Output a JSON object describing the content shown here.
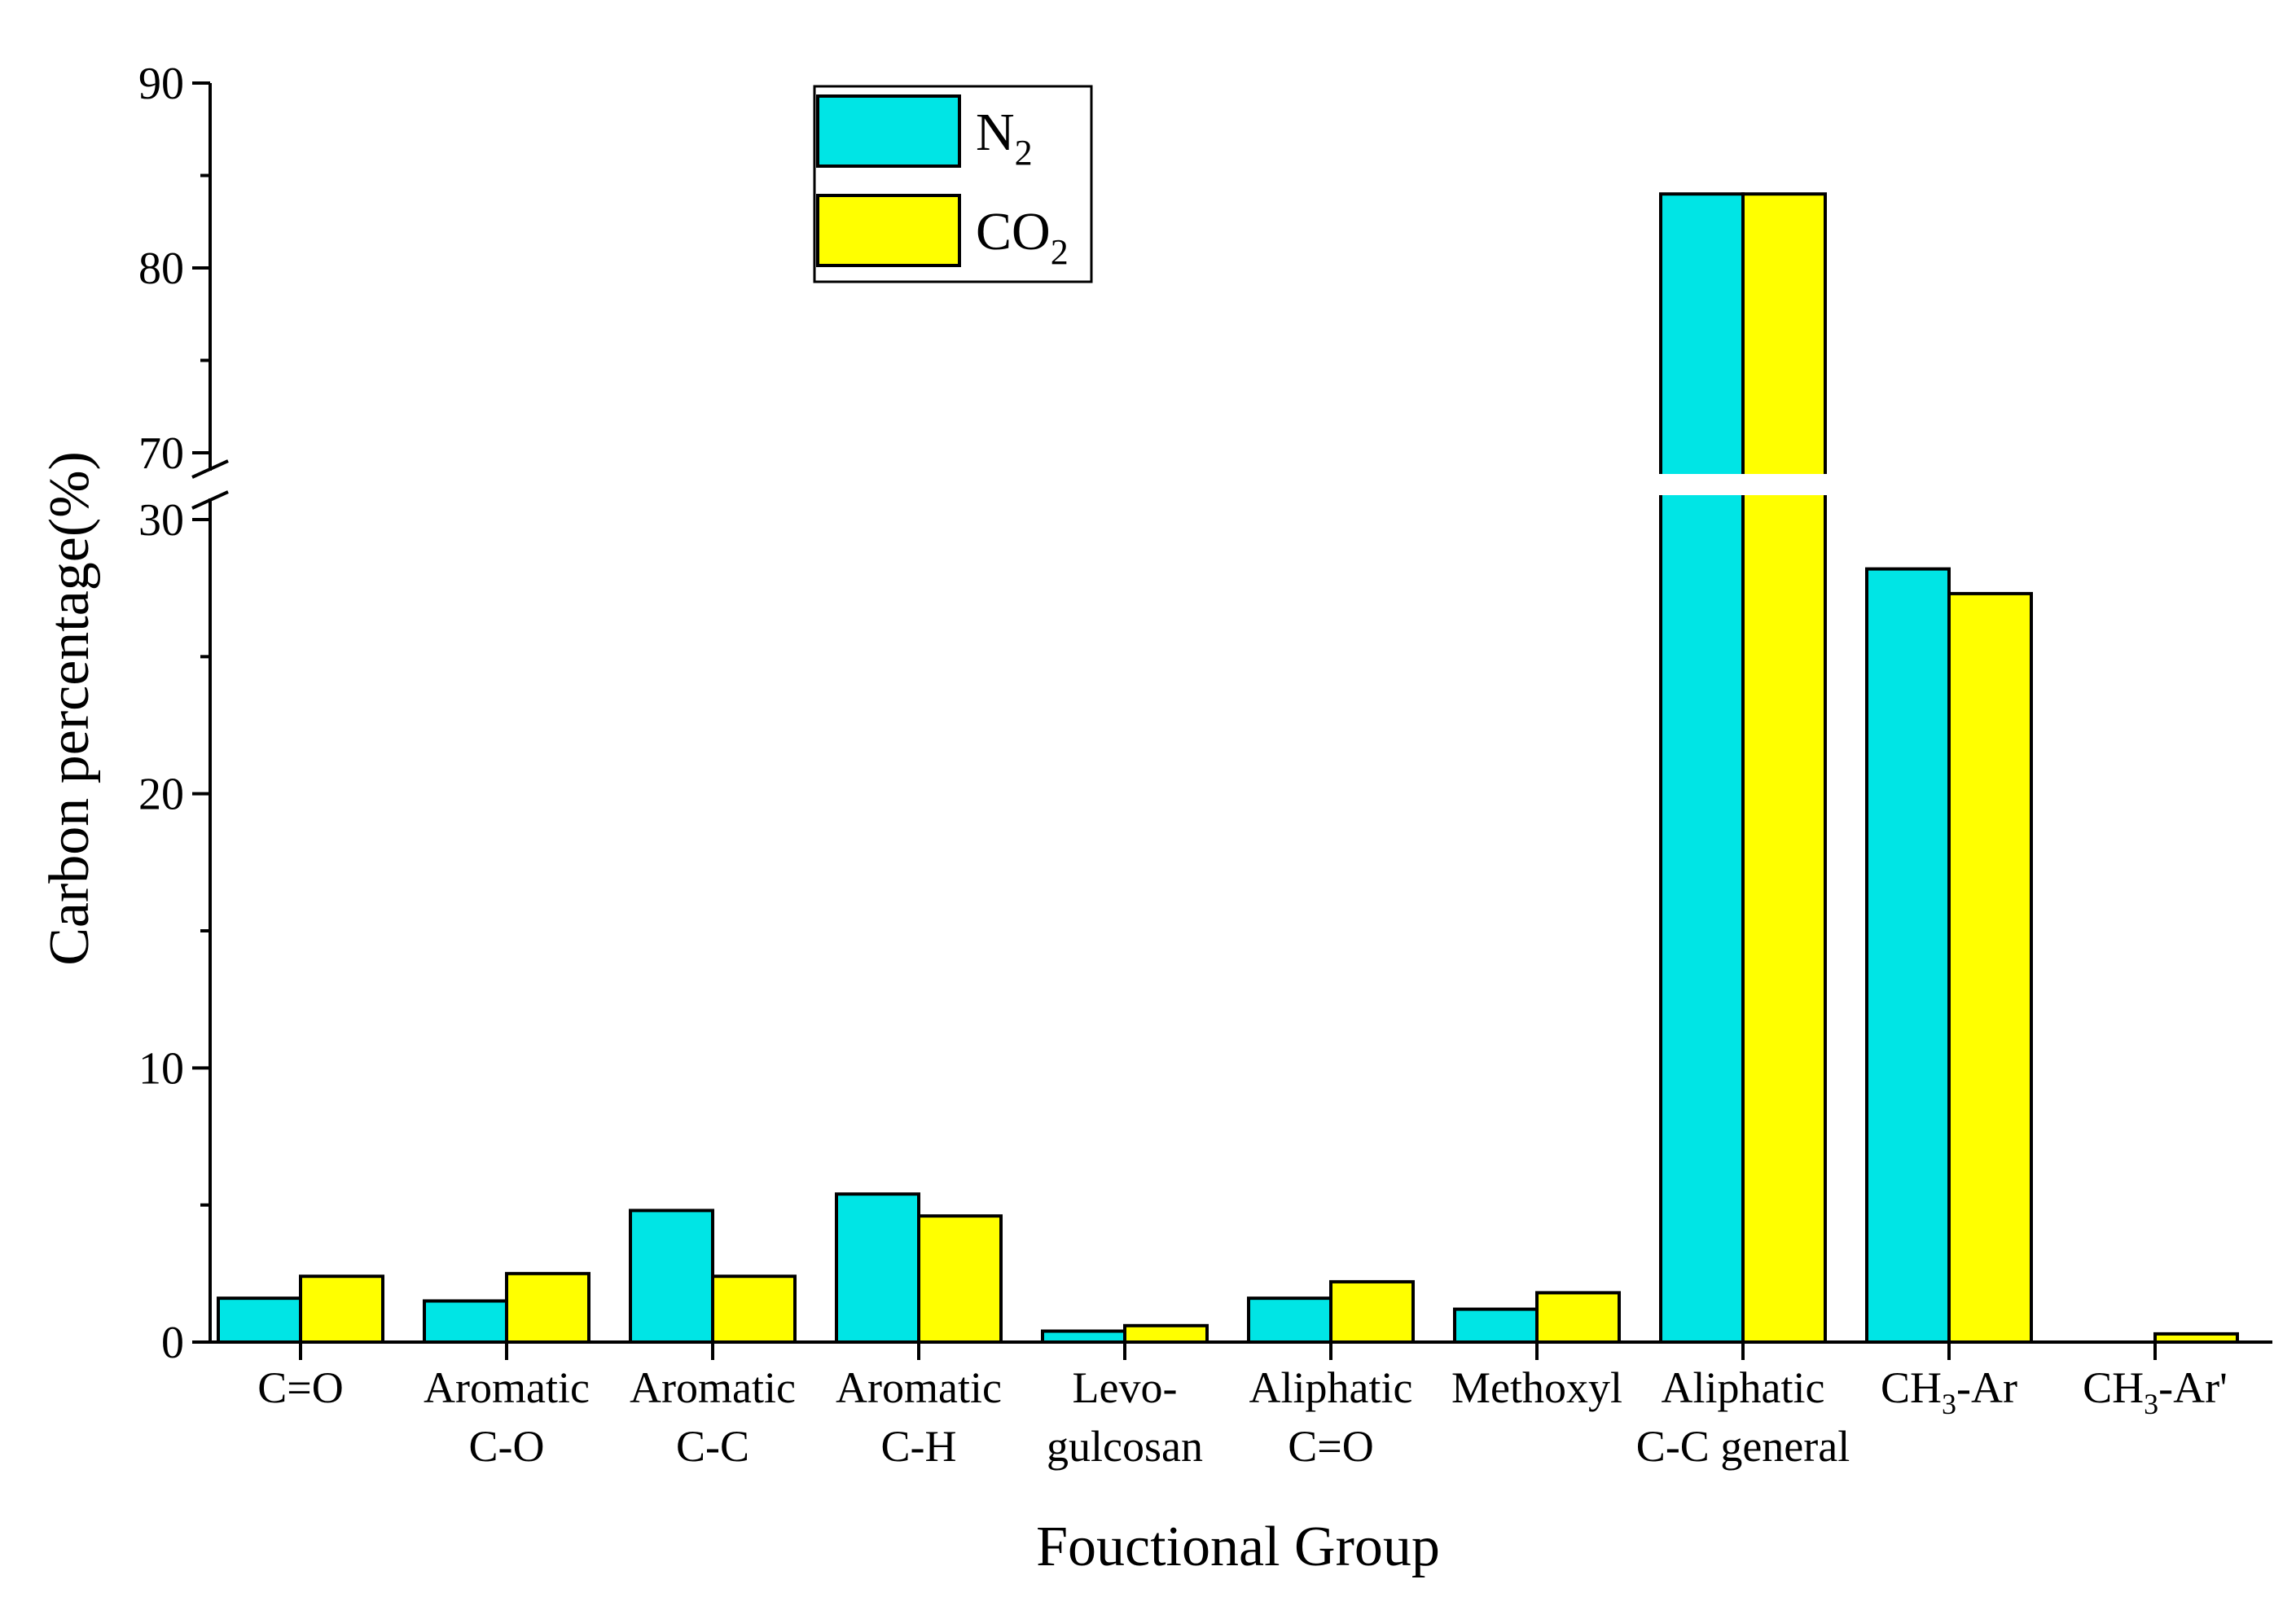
{
  "chart_data": {
    "type": "bar",
    "title": "",
    "xlabel": "Fouctional Group",
    "ylabel": "Carbon percentage(%)",
    "axis_break": {
      "lower_range": [
        0,
        30
      ],
      "upper_range": [
        70,
        90
      ]
    },
    "yticks_lower": [
      0,
      10,
      20,
      30
    ],
    "yticks_upper": [
      70,
      80,
      90
    ],
    "categories": [
      {
        "line1": "C=O",
        "line2": ""
      },
      {
        "line1": "Aromatic",
        "line2": "C-O"
      },
      {
        "line1": "Aromatic",
        "line2": "C-C"
      },
      {
        "line1": "Aromatic",
        "line2": "C-H"
      },
      {
        "line1": "Levo-",
        "line2": "gulcosan"
      },
      {
        "line1": "Aliphatic",
        "line2": "C=O"
      },
      {
        "line1": "Methoxyl",
        "line2": ""
      },
      {
        "line1": "Aliphatic",
        "line2": "C-C general"
      },
      {
        "line1": "CH",
        "sub": "3",
        "rest": "-Ar",
        "line2": ""
      },
      {
        "line1": "CH",
        "sub": "3",
        "rest": "-Ar'",
        "line2": ""
      }
    ],
    "series": [
      {
        "name": "N",
        "name_sub": "2",
        "color": "#00e5e5",
        "values": [
          1.6,
          1.5,
          4.8,
          5.4,
          0.4,
          1.6,
          1.2,
          84,
          28.2,
          0
        ]
      },
      {
        "name": "CO",
        "name_sub": "2",
        "color": "#ffff00",
        "values": [
          2.4,
          2.5,
          2.4,
          4.6,
          0.6,
          2.2,
          1.8,
          84,
          27.3,
          0.3
        ]
      }
    ],
    "legend_position": "top-center"
  }
}
